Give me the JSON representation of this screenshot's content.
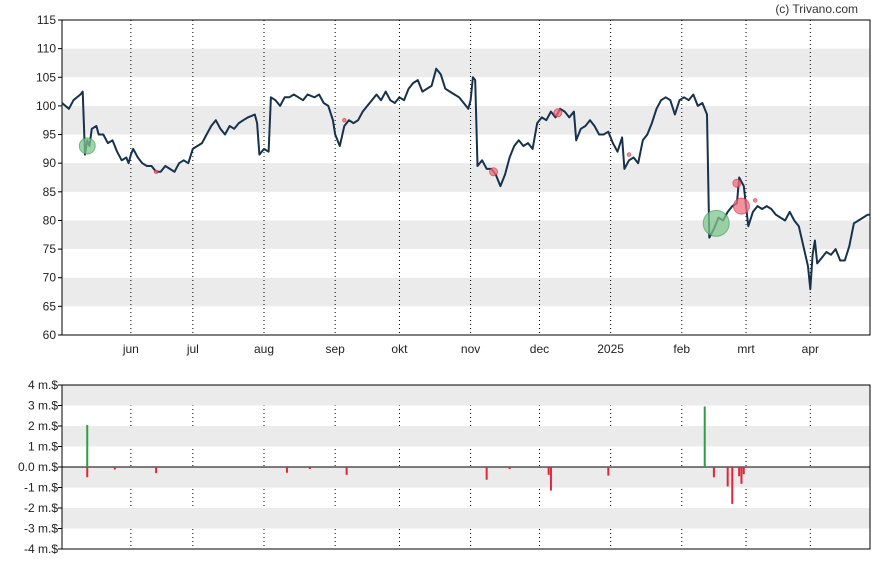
{
  "watermark": "(c) Trivano.com",
  "colors": {
    "price_line": "#17324d",
    "band": "#ebebeb",
    "buy": "#2e9e45",
    "sell": "#e0243a",
    "buy_marker": "#7fc58d",
    "sell_marker": "#ee6e7f",
    "axis": "#000000",
    "vgrid": "#000000"
  },
  "chart_data": [
    {
      "type": "line",
      "name": "price",
      "ylim": [
        60,
        115
      ],
      "yticks": [
        60,
        65,
        70,
        75,
        80,
        85,
        90,
        95,
        100,
        105,
        110,
        115
      ],
      "x_months": [
        "jun",
        "jul",
        "aug",
        "sep",
        "okt",
        "nov",
        "dec",
        "2025",
        "feb",
        "mrt",
        "apr"
      ],
      "x_range_days": [
        0,
        338
      ],
      "month_day_index": [
        30,
        57,
        88,
        119,
        147,
        178,
        208,
        239,
        270,
        298,
        326
      ],
      "grid": "alternating horizontal bands, dotted vertical lines at months",
      "points": [
        [
          0,
          100.5
        ],
        [
          3,
          99.5
        ],
        [
          5,
          101
        ],
        [
          8,
          102
        ],
        [
          9,
          102.5
        ],
        [
          10,
          91.5
        ],
        [
          11,
          94
        ],
        [
          12,
          93
        ],
        [
          13,
          96
        ],
        [
          15,
          96.5
        ],
        [
          16,
          95
        ],
        [
          18,
          95
        ],
        [
          20,
          93.5
        ],
        [
          22,
          94
        ],
        [
          24,
          92
        ],
        [
          26,
          90.5
        ],
        [
          28,
          91
        ],
        [
          29,
          90
        ],
        [
          30,
          91.5
        ],
        [
          31,
          92.5
        ],
        [
          33,
          91
        ],
        [
          35,
          90
        ],
        [
          37,
          89.5
        ],
        [
          39,
          89.5
        ],
        [
          41,
          88.5
        ],
        [
          43,
          88.5
        ],
        [
          45,
          89.5
        ],
        [
          47,
          89
        ],
        [
          49,
          88.5
        ],
        [
          51,
          90
        ],
        [
          53,
          90.5
        ],
        [
          55,
          90
        ],
        [
          57,
          92.5
        ],
        [
          59,
          93
        ],
        [
          61,
          93.5
        ],
        [
          63,
          95
        ],
        [
          65,
          96.5
        ],
        [
          67,
          97.5
        ],
        [
          69,
          96
        ],
        [
          71,
          95
        ],
        [
          73,
          96.5
        ],
        [
          75,
          96
        ],
        [
          77,
          97
        ],
        [
          79,
          97.5
        ],
        [
          81,
          98
        ],
        [
          84,
          98.5
        ],
        [
          85,
          97
        ],
        [
          86,
          91.5
        ],
        [
          88,
          92.5
        ],
        [
          90,
          92
        ],
        [
          91,
          101.5
        ],
        [
          93,
          101
        ],
        [
          95,
          100
        ],
        [
          97,
          101.5
        ],
        [
          99,
          101.5
        ],
        [
          101,
          102
        ],
        [
          103,
          101.5
        ],
        [
          105,
          101
        ],
        [
          107,
          102
        ],
        [
          110,
          101.5
        ],
        [
          112,
          102
        ],
        [
          114,
          100.5
        ],
        [
          116,
          100
        ],
        [
          118,
          97.5
        ],
        [
          119,
          95
        ],
        [
          121,
          93
        ],
        [
          123,
          96.5
        ],
        [
          125,
          97.5
        ],
        [
          127,
          97
        ],
        [
          129,
          97.5
        ],
        [
          131,
          99
        ],
        [
          133,
          100
        ],
        [
          135,
          101
        ],
        [
          137,
          102
        ],
        [
          139,
          101
        ],
        [
          141,
          102.5
        ],
        [
          143,
          101
        ],
        [
          145,
          100.5
        ],
        [
          147,
          101.5
        ],
        [
          149,
          101
        ],
        [
          151,
          103
        ],
        [
          153,
          104
        ],
        [
          155,
          104.5
        ],
        [
          157,
          102.5
        ],
        [
          159,
          103
        ],
        [
          161,
          103.5
        ],
        [
          163,
          106.5
        ],
        [
          165,
          105.5
        ],
        [
          167,
          103
        ],
        [
          169,
          102.5
        ],
        [
          171,
          102
        ],
        [
          173,
          101.5
        ],
        [
          175,
          100.5
        ],
        [
          177,
          99.5
        ],
        [
          178,
          101
        ],
        [
          179,
          105
        ],
        [
          180,
          104.5
        ],
        [
          181,
          89.5
        ],
        [
          183,
          90.5
        ],
        [
          185,
          89
        ],
        [
          187,
          89
        ],
        [
          189,
          88
        ],
        [
          191,
          86
        ],
        [
          193,
          88
        ],
        [
          195,
          91
        ],
        [
          197,
          93
        ],
        [
          199,
          94
        ],
        [
          201,
          93
        ],
        [
          203,
          93.5
        ],
        [
          205,
          92.5
        ],
        [
          207,
          97
        ],
        [
          209,
          98
        ],
        [
          211,
          97.5
        ],
        [
          213,
          99
        ],
        [
          215,
          98
        ],
        [
          217,
          99.5
        ],
        [
          219,
          99
        ],
        [
          221,
          98
        ],
        [
          223,
          99
        ],
        [
          224,
          94
        ],
        [
          226,
          96
        ],
        [
          228,
          96.5
        ],
        [
          230,
          97.5
        ],
        [
          232,
          96.5
        ],
        [
          234,
          95
        ],
        [
          236,
          95
        ],
        [
          238,
          95.5
        ],
        [
          240,
          93.5
        ],
        [
          242,
          92
        ],
        [
          244,
          94.5
        ],
        [
          245,
          89
        ],
        [
          247,
          90.5
        ],
        [
          249,
          91
        ],
        [
          251,
          90
        ],
        [
          253,
          94
        ],
        [
          255,
          95
        ],
        [
          257,
          97
        ],
        [
          259,
          99.5
        ],
        [
          261,
          101
        ],
        [
          263,
          101.5
        ],
        [
          265,
          101
        ],
        [
          267,
          98.5
        ],
        [
          269,
          101
        ],
        [
          271,
          101.5
        ],
        [
          273,
          101
        ],
        [
          275,
          102
        ],
        [
          277,
          100
        ],
        [
          279,
          100.5
        ],
        [
          281,
          98.5
        ],
        [
          282,
          77
        ],
        [
          284,
          78.5
        ],
        [
          286,
          80.5
        ],
        [
          288,
          80
        ],
        [
          290,
          81.5
        ],
        [
          292,
          82.5
        ],
        [
          294,
          83
        ],
        [
          295,
          87.5
        ],
        [
          297,
          86
        ],
        [
          299,
          79
        ],
        [
          301,
          81.5
        ],
        [
          303,
          82.5
        ],
        [
          305,
          82
        ],
        [
          307,
          82.5
        ],
        [
          309,
          82
        ],
        [
          311,
          81
        ],
        [
          313,
          80.5
        ],
        [
          315,
          80
        ],
        [
          317,
          81.5
        ],
        [
          319,
          80
        ],
        [
          321,
          79
        ],
        [
          323,
          75.5
        ],
        [
          325,
          72
        ],
        [
          326,
          68
        ],
        [
          327,
          74
        ],
        [
          328,
          76.5
        ],
        [
          329,
          72.5
        ],
        [
          331,
          73.5
        ],
        [
          333,
          74.5
        ],
        [
          335,
          74
        ],
        [
          337,
          75
        ],
        [
          339,
          73
        ],
        [
          341,
          73
        ],
        [
          343,
          75.5
        ],
        [
          345,
          79.5
        ],
        [
          347,
          80
        ],
        [
          349,
          80.5
        ],
        [
          351,
          81
        ],
        [
          352,
          81
        ]
      ],
      "markers": [
        {
          "day": 11,
          "value": 93,
          "kind": "buy",
          "size": "large"
        },
        {
          "day": 41,
          "value": 88.5,
          "kind": "sell",
          "size": "tiny"
        },
        {
          "day": 123,
          "value": 97.5,
          "kind": "sell",
          "size": "tiny"
        },
        {
          "day": 188,
          "value": 88.5,
          "kind": "sell",
          "size": "small"
        },
        {
          "day": 216,
          "value": 98.8,
          "kind": "sell",
          "size": "small"
        },
        {
          "day": 247,
          "value": 91.5,
          "kind": "sell",
          "size": "tiny"
        },
        {
          "day": 285,
          "value": 79.5,
          "kind": "buy",
          "size": "xlarge"
        },
        {
          "day": 294,
          "value": 86.5,
          "kind": "sell",
          "size": "small"
        },
        {
          "day": 296,
          "value": 82.5,
          "kind": "sell",
          "size": "large"
        },
        {
          "day": 302,
          "value": 83.5,
          "kind": "sell",
          "size": "tiny"
        }
      ]
    },
    {
      "type": "bar",
      "name": "volume",
      "ylim": [
        -4,
        4
      ],
      "yticks": [
        -4,
        -3,
        -2,
        -1,
        0,
        1,
        2,
        3,
        4
      ],
      "ytick_labels": [
        "-4 m.$",
        "-3 m.$",
        "-2 m.$",
        "-1 m.$",
        "0.0 m.$",
        "1 m.$",
        "2 m.$",
        "3 m.$",
        "4 m.$"
      ],
      "bars": [
        {
          "day": 11,
          "value": 2.05
        },
        {
          "day": 11,
          "value": -0.5
        },
        {
          "day": 23,
          "value": -0.12
        },
        {
          "day": 41,
          "value": -0.3
        },
        {
          "day": 98,
          "value": -0.28
        },
        {
          "day": 108,
          "value": -0.1
        },
        {
          "day": 124,
          "value": -0.38
        },
        {
          "day": 185,
          "value": -0.62
        },
        {
          "day": 195,
          "value": -0.1
        },
        {
          "day": 212,
          "value": -0.38
        },
        {
          "day": 213,
          "value": -1.15
        },
        {
          "day": 238,
          "value": -0.42
        },
        {
          "day": 280,
          "value": 2.95
        },
        {
          "day": 284,
          "value": -0.5
        },
        {
          "day": 290,
          "value": -0.95
        },
        {
          "day": 292,
          "value": -1.8
        },
        {
          "day": 295,
          "value": -0.45
        },
        {
          "day": 296,
          "value": -0.82
        },
        {
          "day": 297,
          "value": -0.35
        }
      ]
    }
  ]
}
